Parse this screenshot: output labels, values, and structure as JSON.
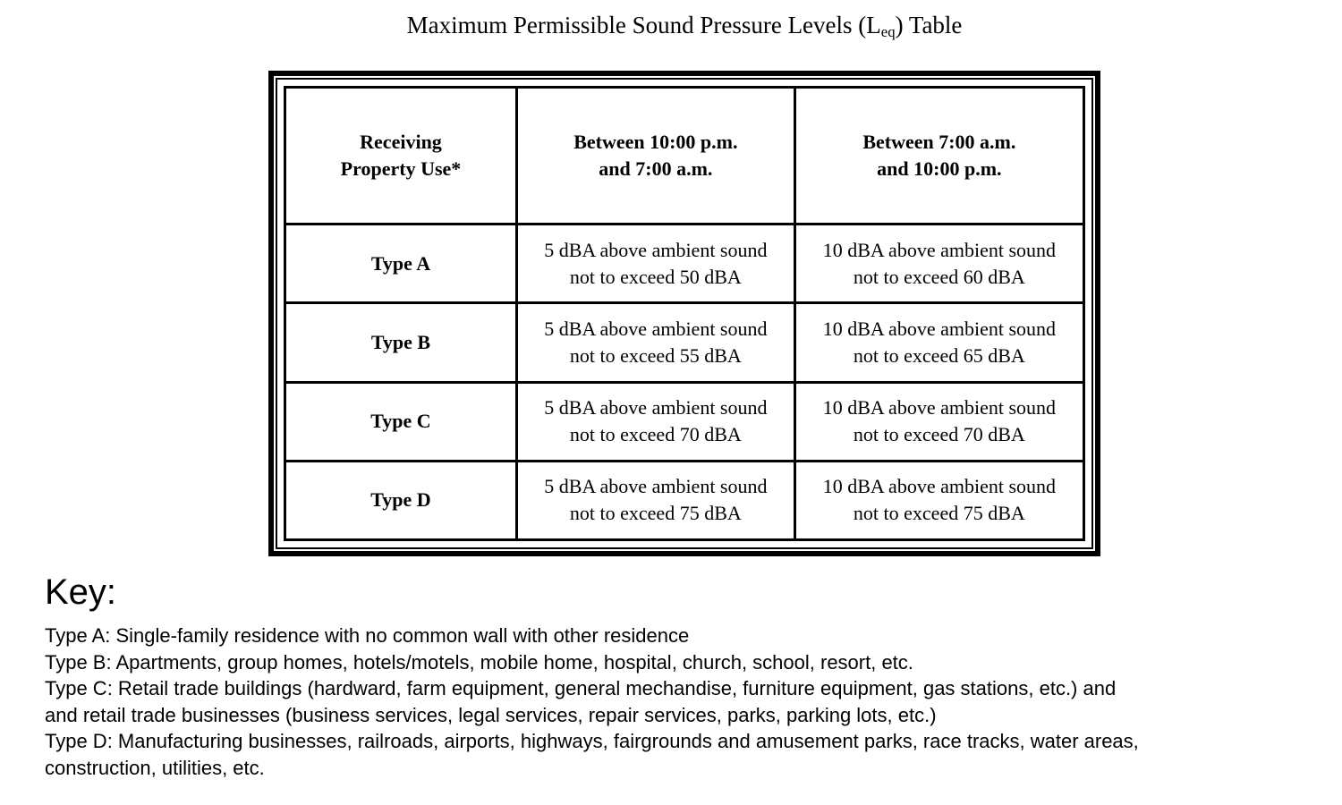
{
  "title": {
    "prefix": "Maximum Permissible Sound Pressure Levels (L",
    "subscript": "eq",
    "suffix": ") Table"
  },
  "table": {
    "columns": [
      "Receiving\nProperty Use*",
      "Between 10:00 p.m.\nand 7:00 a.m.",
      "Between 7:00 a.m.\nand 10:00 p.m."
    ],
    "rows": [
      {
        "type": "Type A",
        "night": "5 dBA above ambient sound\nnot to exceed 50 dBA",
        "day": "10 dBA above ambient sound\nnot to exceed 60 dBA"
      },
      {
        "type": "Type B",
        "night": "5 dBA above ambient sound\nnot to exceed 55 dBA",
        "day": "10 dBA above ambient sound\nnot to exceed 65 dBA"
      },
      {
        "type": "Type C",
        "night": "5 dBA above ambient sound\nnot to exceed 70 dBA",
        "day": "10 dBA above ambient sound\nnot to exceed 70 dBA"
      },
      {
        "type": "Type D",
        "night": "5 dBA above ambient sound\nnot to exceed 75 dBA",
        "day": "10 dBA above ambient sound\nnot to exceed 75 dBA"
      }
    ]
  },
  "key": {
    "heading": "Key:",
    "lines": [
      "Type A: Single-family residence with no common wall with other residence",
      "Type B: Apartments, group homes, hotels/motels, mobile home, hospital, church, school, resort, etc.",
      "Type C: Retail trade buildings (hardward, farm equipment, general mechandise, furniture equipment, gas stations, etc.) and",
      "and retail trade businesses (business services, legal services, repair services, parks, parking lots, etc.)",
      "Type D: Manufacturing businesses, railroads, airports, highways, fairgrounds and amusement parks, race tracks, water areas,",
      "construction, utilities, etc."
    ]
  },
  "colors": {
    "text": "#000000",
    "background": "#ffffff",
    "border": "#000000"
  }
}
